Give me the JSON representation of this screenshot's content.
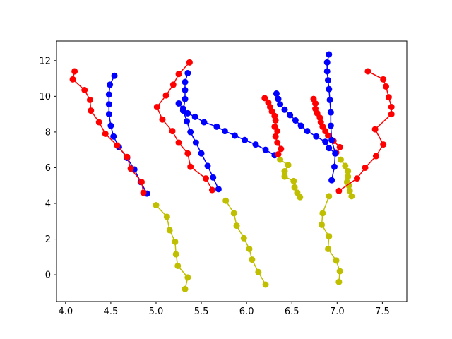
{
  "chart_data": {
    "type": "line",
    "title": "",
    "xlabel": "",
    "ylabel": "",
    "xlim": [
      3.9,
      7.77
    ],
    "ylim": [
      -1.5,
      13.1
    ],
    "xticks": [
      4.0,
      4.5,
      5.0,
      5.5,
      6.0,
      6.5,
      7.0,
      7.5
    ],
    "xtick_labels": [
      "4.0",
      "4.5",
      "5.0",
      "5.5",
      "6.0",
      "6.5",
      "7.0",
      "7.5"
    ],
    "yticks": [
      0,
      2,
      4,
      6,
      8,
      10,
      12
    ],
    "ytick_labels": [
      "0",
      "2",
      "4",
      "6",
      "8",
      "10",
      "12"
    ],
    "grid": false,
    "series": [
      {
        "color": "#0000ff",
        "points": [
          [
            4.9,
            4.55
          ],
          [
            4.83,
            5.2
          ],
          [
            4.76,
            5.9
          ],
          [
            4.68,
            6.55
          ],
          [
            4.59,
            7.15
          ],
          [
            4.53,
            7.75
          ],
          [
            4.5,
            8.35
          ],
          [
            4.48,
            9.0
          ],
          [
            4.48,
            9.55
          ],
          [
            4.48,
            10.1
          ],
          [
            4.49,
            10.65
          ],
          [
            4.54,
            11.15
          ]
        ]
      },
      {
        "color": "#ff0000",
        "points": [
          [
            4.86,
            4.6
          ],
          [
            4.84,
            5.2
          ],
          [
            4.72,
            5.95
          ],
          [
            4.68,
            6.6
          ],
          [
            4.57,
            7.25
          ],
          [
            4.44,
            7.9
          ],
          [
            4.37,
            8.55
          ],
          [
            4.28,
            9.2
          ],
          [
            4.27,
            9.8
          ],
          [
            4.21,
            10.35
          ],
          [
            4.08,
            10.95
          ],
          [
            4.1,
            11.4
          ]
        ]
      },
      {
        "color": "#bfbf00",
        "points": [
          [
            5.32,
            -0.8
          ],
          [
            5.35,
            -0.15
          ],
          [
            5.24,
            0.5
          ],
          [
            5.22,
            1.15
          ],
          [
            5.21,
            1.85
          ],
          [
            5.15,
            2.5
          ],
          [
            5.12,
            3.25
          ],
          [
            5.0,
            3.9
          ]
        ]
      },
      {
        "color": "#0000ff",
        "points": [
          [
            5.69,
            4.8
          ],
          [
            5.63,
            5.45
          ],
          [
            5.57,
            6.1
          ],
          [
            5.5,
            6.8
          ],
          [
            5.44,
            7.4
          ],
          [
            5.38,
            8.0
          ],
          [
            5.34,
            8.6
          ],
          [
            5.3,
            9.2
          ],
          [
            5.32,
            9.85
          ],
          [
            5.32,
            10.35
          ],
          [
            5.32,
            10.8
          ],
          [
            5.35,
            11.3
          ]
        ]
      },
      {
        "color": "#ff0000",
        "points": [
          [
            5.62,
            4.75
          ],
          [
            5.55,
            5.4
          ],
          [
            5.38,
            6.05
          ],
          [
            5.35,
            6.8
          ],
          [
            5.25,
            7.4
          ],
          [
            5.18,
            8.05
          ],
          [
            5.07,
            8.7
          ],
          [
            5.01,
            9.4
          ],
          [
            5.11,
            10.05
          ],
          [
            5.19,
            10.65
          ],
          [
            5.25,
            11.25
          ],
          [
            5.37,
            11.9
          ]
        ]
      },
      {
        "color": "#0000ff",
        "points": [
          [
            5.25,
            9.6
          ],
          [
            5.3,
            9.3
          ],
          [
            5.35,
            9.05
          ],
          [
            5.43,
            8.85
          ],
          [
            5.53,
            8.55
          ],
          [
            5.67,
            8.3
          ],
          [
            5.76,
            8.05
          ],
          [
            5.87,
            7.8
          ],
          [
            5.98,
            7.55
          ],
          [
            6.1,
            7.3
          ],
          [
            6.21,
            7.0
          ],
          [
            6.31,
            6.7
          ]
        ]
      },
      {
        "color": "#bfbf00",
        "points": [
          [
            6.21,
            -0.55
          ],
          [
            6.13,
            0.15
          ],
          [
            6.06,
            0.85
          ],
          [
            6.03,
            1.45
          ],
          [
            5.97,
            2.05
          ],
          [
            5.89,
            2.75
          ],
          [
            5.86,
            3.45
          ],
          [
            5.77,
            4.15
          ]
        ]
      },
      {
        "color": "#0000ff",
        "points": [
          [
            6.33,
            10.15
          ],
          [
            6.35,
            9.85
          ],
          [
            6.37,
            9.55
          ],
          [
            6.42,
            9.25
          ],
          [
            6.48,
            8.95
          ],
          [
            6.54,
            8.65
          ],
          [
            6.6,
            8.35
          ],
          [
            6.67,
            8.05
          ],
          [
            6.77,
            7.75
          ],
          [
            6.87,
            7.45
          ],
          [
            6.91,
            7.1
          ],
          [
            6.98,
            6.8
          ]
        ]
      },
      {
        "color": "#ff0000",
        "points": [
          [
            6.35,
            6.75
          ],
          [
            6.38,
            7.05
          ],
          [
            6.34,
            7.4
          ],
          [
            6.32,
            7.75
          ],
          [
            6.34,
            8.05
          ],
          [
            6.31,
            8.3
          ],
          [
            6.32,
            8.65
          ],
          [
            6.31,
            8.9
          ],
          [
            6.28,
            9.15
          ],
          [
            6.26,
            9.4
          ],
          [
            6.24,
            9.65
          ],
          [
            6.2,
            9.9
          ]
        ]
      },
      {
        "color": "#bfbf00",
        "points": [
          [
            6.59,
            4.35
          ],
          [
            6.56,
            4.6
          ],
          [
            6.53,
            4.9
          ],
          [
            6.52,
            5.25
          ],
          [
            6.42,
            5.5
          ],
          [
            6.42,
            5.8
          ],
          [
            6.46,
            6.15
          ],
          [
            6.37,
            6.45
          ]
        ]
      },
      {
        "color": "#ff0000",
        "points": [
          [
            6.99,
            6.85
          ],
          [
            7.03,
            7.15
          ],
          [
            6.96,
            7.5
          ],
          [
            6.9,
            7.8
          ],
          [
            6.87,
            8.05
          ],
          [
            6.84,
            8.3
          ],
          [
            6.82,
            8.55
          ],
          [
            6.81,
            8.8
          ],
          [
            6.78,
            9.05
          ],
          [
            6.76,
            9.3
          ],
          [
            6.76,
            9.6
          ],
          [
            6.74,
            9.85
          ]
        ]
      },
      {
        "color": "#0000ff",
        "points": [
          [
            6.94,
            5.3
          ],
          [
            6.97,
            6.05
          ],
          [
            6.98,
            6.8
          ],
          [
            6.94,
            7.55
          ],
          [
            6.93,
            8.35
          ],
          [
            6.93,
            9.1
          ],
          [
            6.92,
            9.8
          ],
          [
            6.91,
            10.4
          ],
          [
            6.9,
            10.9
          ],
          [
            6.89,
            11.4
          ],
          [
            6.89,
            11.9
          ],
          [
            6.91,
            12.35
          ]
        ]
      },
      {
        "color": "#bfbf00",
        "points": [
          [
            7.02,
            -0.4
          ],
          [
            7.03,
            0.2
          ],
          [
            6.99,
            0.8
          ],
          [
            6.9,
            1.45
          ],
          [
            6.91,
            2.15
          ],
          [
            6.83,
            2.8
          ],
          [
            6.84,
            3.45
          ],
          [
            6.91,
            4.4
          ]
        ]
      },
      {
        "color": "#bfbf00",
        "points": [
          [
            7.16,
            4.4
          ],
          [
            7.14,
            4.7
          ],
          [
            7.13,
            5.0
          ],
          [
            7.11,
            5.2
          ],
          [
            7.12,
            5.5
          ],
          [
            7.12,
            5.8
          ],
          [
            7.09,
            6.1
          ],
          [
            7.04,
            6.45
          ]
        ]
      },
      {
        "color": "#ff0000",
        "points": [
          [
            7.02,
            4.7
          ],
          [
            7.22,
            5.4
          ],
          [
            7.31,
            6.0
          ],
          [
            7.43,
            6.65
          ],
          [
            7.51,
            7.3
          ],
          [
            7.42,
            8.15
          ],
          [
            7.6,
            9.0
          ],
          [
            7.6,
            9.4
          ],
          [
            7.57,
            9.95
          ],
          [
            7.54,
            10.55
          ],
          [
            7.51,
            10.95
          ],
          [
            7.34,
            11.4
          ]
        ]
      }
    ]
  }
}
